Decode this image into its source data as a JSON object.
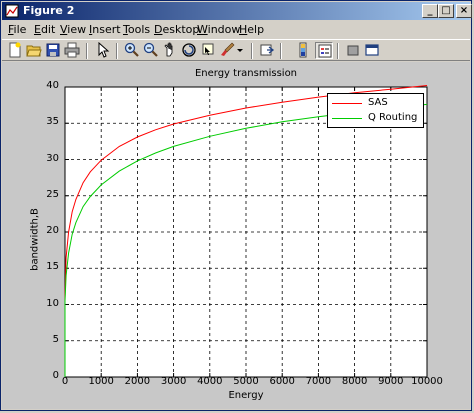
{
  "window": {
    "title": "Figure 2",
    "buttons": {
      "minimize": "_",
      "maximize": "□",
      "close": "×"
    }
  },
  "menu": {
    "items": [
      {
        "label": "File",
        "accel": "F",
        "rest": "ile"
      },
      {
        "label": "Edit",
        "accel": "E",
        "rest": "dit"
      },
      {
        "label": "View",
        "accel": "V",
        "rest": "iew"
      },
      {
        "label": "Insert",
        "accel": "I",
        "rest": "nsert"
      },
      {
        "label": "Tools",
        "accel": "T",
        "rest": "ools"
      },
      {
        "label": "Desktop",
        "accel": "D",
        "rest": "esktop"
      },
      {
        "label": "Window",
        "accel": "W",
        "rest": "indow"
      },
      {
        "label": "Help",
        "accel": "H",
        "rest": "elp"
      }
    ]
  },
  "toolbar": {
    "icons": [
      "new-figure-icon",
      "open-file-icon",
      "save-icon",
      "print-icon",
      "edit-plot-arrow-icon",
      "zoom-in-icon",
      "zoom-out-icon",
      "pan-hand-icon",
      "rotate-3d-icon",
      "data-cursor-icon",
      "brush-icon",
      "brush-dropdown-icon",
      "link-plot-icon",
      "colorbar-icon",
      "legend-icon",
      "hide-plot-tools-icon",
      "show-plot-tools-icon"
    ]
  },
  "chart_data": {
    "type": "line",
    "title": "Energy transmission",
    "xlabel": "Energy",
    "ylabel": "bandwidth,B",
    "xlim": [
      0,
      10000
    ],
    "ylim": [
      0,
      40
    ],
    "xticks": [
      "0",
      "1000",
      "2000",
      "3000",
      "4000",
      "5000",
      "6000",
      "7000",
      "8000",
      "9000",
      "10000"
    ],
    "yticks": [
      "0",
      "5",
      "10",
      "15",
      "20",
      "25",
      "30",
      "35",
      "40"
    ],
    "grid": true,
    "grid_style": "dashed",
    "legend_position": "top-right",
    "series": [
      {
        "name": "SAS",
        "color": "#ff0000",
        "x": [
          0,
          1,
          30,
          100,
          200,
          300,
          500,
          700,
          1000,
          1500,
          2000,
          2500,
          3000,
          4000,
          5000,
          6000,
          7000,
          8000,
          9000,
          10000
        ],
        "y": [
          0,
          11,
          16.5,
          20,
          22.8,
          24.5,
          26.8,
          28.3,
          29.9,
          31.8,
          33.1,
          34.1,
          34.9,
          36.1,
          37.1,
          37.9,
          38.6,
          39.2,
          39.7,
          40.2
        ]
      },
      {
        "name": "Q Routing",
        "color": "#00cc00",
        "x": [
          0,
          1,
          30,
          100,
          200,
          300,
          500,
          700,
          1000,
          1500,
          2000,
          2500,
          3000,
          4000,
          5000,
          6000,
          7000,
          8000,
          9000,
          10000
        ],
        "y": [
          0,
          10.5,
          14,
          17.1,
          19.7,
          21.3,
          23.5,
          24.9,
          26.5,
          28.4,
          29.8,
          30.9,
          31.8,
          33.2,
          34.3,
          35.2,
          35.9,
          36.5,
          37.1,
          37.6
        ]
      }
    ]
  }
}
